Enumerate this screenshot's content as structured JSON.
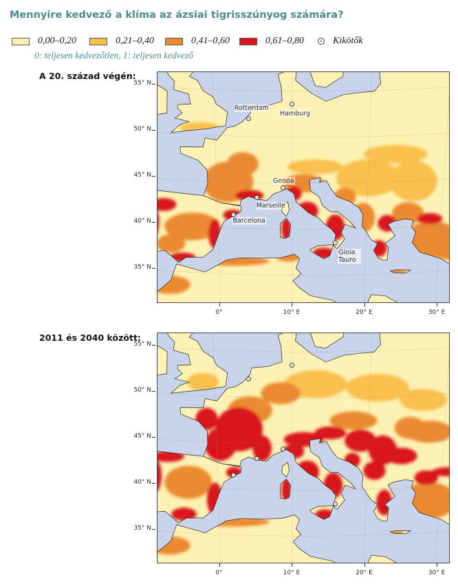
{
  "title": "Mennyire kedvező a klíma az ázsiai tigrisszúnyog számára?",
  "legend": {
    "classes": [
      {
        "label": "0,00–0,20",
        "color": "#fdf2b3"
      },
      {
        "label": "0,21–0,40",
        "color": "#f9c04e"
      },
      {
        "label": "0,41–0,60",
        "color": "#ec8a30"
      },
      {
        "label": "0,61–0,80",
        "color": "#d8141a"
      }
    ],
    "ports_label": "Kikötők",
    "note": "0: teljesen kedvezőtlen, 1: teljesen kedvező"
  },
  "colors": {
    "sea": "#c9d4ea",
    "nodata": "#e6e6e6",
    "border": "#222222",
    "accent": "#4a8a8a"
  },
  "maps": [
    {
      "title": "A 20. század végén:",
      "period": "late-20th-century",
      "lat_labels": [
        "55° N",
        "50° N",
        "45° N",
        "40° N",
        "35° N"
      ],
      "lon_labels": [
        "0°",
        "10° E",
        "20° E",
        "30° E"
      ],
      "ports": [
        {
          "name": "Rotterdam",
          "lon": 4.5,
          "lat": 51.9
        },
        {
          "name": "Hamburg",
          "lon": 10.0,
          "lat": 53.5
        },
        {
          "name": "Genoa",
          "lon": 8.9,
          "lat": 44.4
        },
        {
          "name": "Marseille",
          "lon": 5.4,
          "lat": 43.3
        },
        {
          "name": "Barcelona",
          "lon": 2.2,
          "lat": 41.4
        },
        {
          "name": "Gioia Tauro",
          "lon": 15.9,
          "lat": 38.4
        }
      ]
    },
    {
      "title": "2011 és 2040 között:",
      "period": "2011-2040",
      "lat_labels": [
        "55° N",
        "50° N",
        "45° N",
        "40° N",
        "35° N"
      ],
      "lon_labels": [
        "0°",
        "10° E",
        "20° E",
        "30° E"
      ],
      "ports": [
        {
          "name": "",
          "lon": 4.5,
          "lat": 51.9
        },
        {
          "name": "",
          "lon": 10.0,
          "lat": 53.5
        },
        {
          "name": "",
          "lon": 8.9,
          "lat": 44.4
        },
        {
          "name": "",
          "lon": 5.4,
          "lat": 43.3
        },
        {
          "name": "",
          "lon": 2.2,
          "lat": 41.4
        },
        {
          "name": "",
          "lon": 15.9,
          "lat": 38.4
        }
      ]
    }
  ]
}
